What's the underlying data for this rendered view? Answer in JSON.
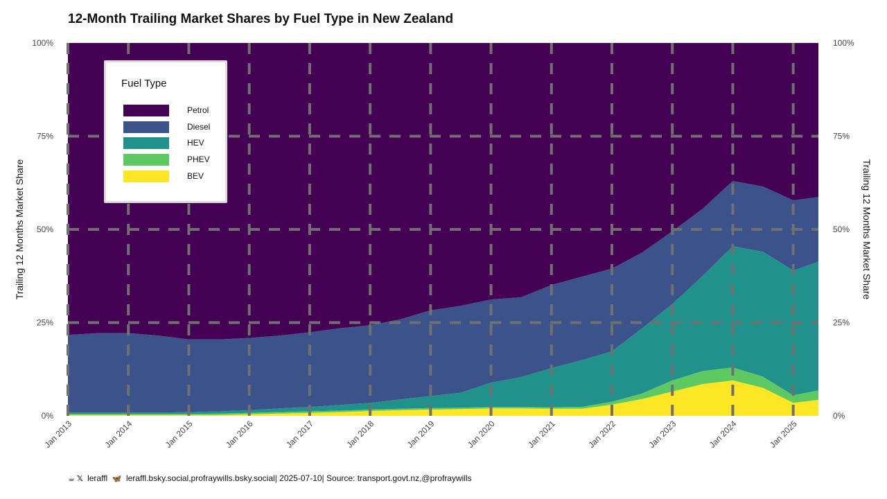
{
  "chart_data": {
    "type": "area",
    "title": "12-Month Trailing Market Shares by Fuel Type in New Zealand",
    "ylabel": "Trailing 12 Months Market Share",
    "ylabel_right": "Trailing 12 Months Market Share",
    "xlabel": "",
    "ylim": [
      0,
      100
    ],
    "yticks": [
      "0%",
      "25%",
      "50%",
      "75%",
      "100%"
    ],
    "ytick_values": [
      0,
      25,
      50,
      75,
      100
    ],
    "xticks": [
      "Jan 2013",
      "Jan 2014",
      "Jan 2015",
      "Jan 2016",
      "Jan 2017",
      "Jan 2018",
      "Jan 2019",
      "Jan 2020",
      "Jan 2021",
      "Jan 2022",
      "Jan 2023",
      "Jan 2024",
      "Jan 2025"
    ],
    "x_start": "2013-01",
    "x_end": "2025-06",
    "grid": "dashed",
    "legend_title": "Fuel Type",
    "legend_position": "top-left",
    "x": [
      "2013-01",
      "2013-07",
      "2014-01",
      "2014-07",
      "2015-01",
      "2015-07",
      "2016-01",
      "2016-07",
      "2017-01",
      "2017-07",
      "2018-01",
      "2018-07",
      "2019-01",
      "2019-07",
      "2020-01",
      "2020-07",
      "2021-01",
      "2021-07",
      "2022-01",
      "2022-07",
      "2023-01",
      "2023-07",
      "2024-01",
      "2024-07",
      "2025-01",
      "2025-06"
    ],
    "series": [
      {
        "name": "BEV",
        "color": "#fde725",
        "values": [
          0.2,
          0.2,
          0.2,
          0.2,
          0.2,
          0.2,
          0.4,
          0.6,
          0.8,
          1.0,
          1.3,
          1.5,
          1.7,
          1.8,
          2.0,
          2.0,
          1.9,
          1.9,
          3.0,
          4.5,
          6.5,
          8.5,
          9.5,
          7.5,
          3.5,
          4.3
        ]
      },
      {
        "name": "PHEV",
        "color": "#5ec962",
        "values": [
          0.3,
          0.3,
          0.3,
          0.3,
          0.3,
          0.4,
          0.4,
          0.4,
          0.4,
          0.4,
          0.4,
          0.4,
          0.4,
          0.4,
          0.4,
          0.4,
          0.4,
          0.5,
          0.8,
          1.5,
          3.0,
          3.5,
          3.5,
          3.0,
          2.0,
          2.5
        ]
      },
      {
        "name": "HEV",
        "color": "#21918c",
        "values": [
          0.4,
          0.4,
          0.4,
          0.4,
          0.5,
          0.6,
          0.7,
          1.0,
          1.2,
          1.5,
          1.8,
          2.5,
          3.2,
          4.0,
          6.5,
          8.0,
          10.5,
          12.5,
          13.5,
          17.5,
          20.5,
          25.5,
          32.5,
          33.5,
          33.5,
          34.5
        ]
      },
      {
        "name": "Diesel",
        "color": "#3b528b",
        "values": [
          20.8,
          21.3,
          21.3,
          20.6,
          19.5,
          19.3,
          19.4,
          19.5,
          20.0,
          20.6,
          20.8,
          21.5,
          23.0,
          23.3,
          22.3,
          21.4,
          22.3,
          22.4,
          22.2,
          20.3,
          19.5,
          18.0,
          17.5,
          17.5,
          18.8,
          17.4
        ]
      },
      {
        "name": "Petrol",
        "color": "#440154",
        "values": [
          78.3,
          77.8,
          77.8,
          78.5,
          79.5,
          79.5,
          79.1,
          78.5,
          77.6,
          76.5,
          75.7,
          74.1,
          71.7,
          70.5,
          68.8,
          68.2,
          64.9,
          62.7,
          60.5,
          56.2,
          50.5,
          44.5,
          37.0,
          38.5,
          42.2,
          41.3
        ]
      }
    ]
  },
  "footer": {
    "handle": "leraffl",
    "bsky": "leraffl.bsky.social,profraywills.bsky.social",
    "date": "2025-07-10",
    "source": "Source: transport.govt.nz,@profraywills",
    "sep": "|"
  }
}
